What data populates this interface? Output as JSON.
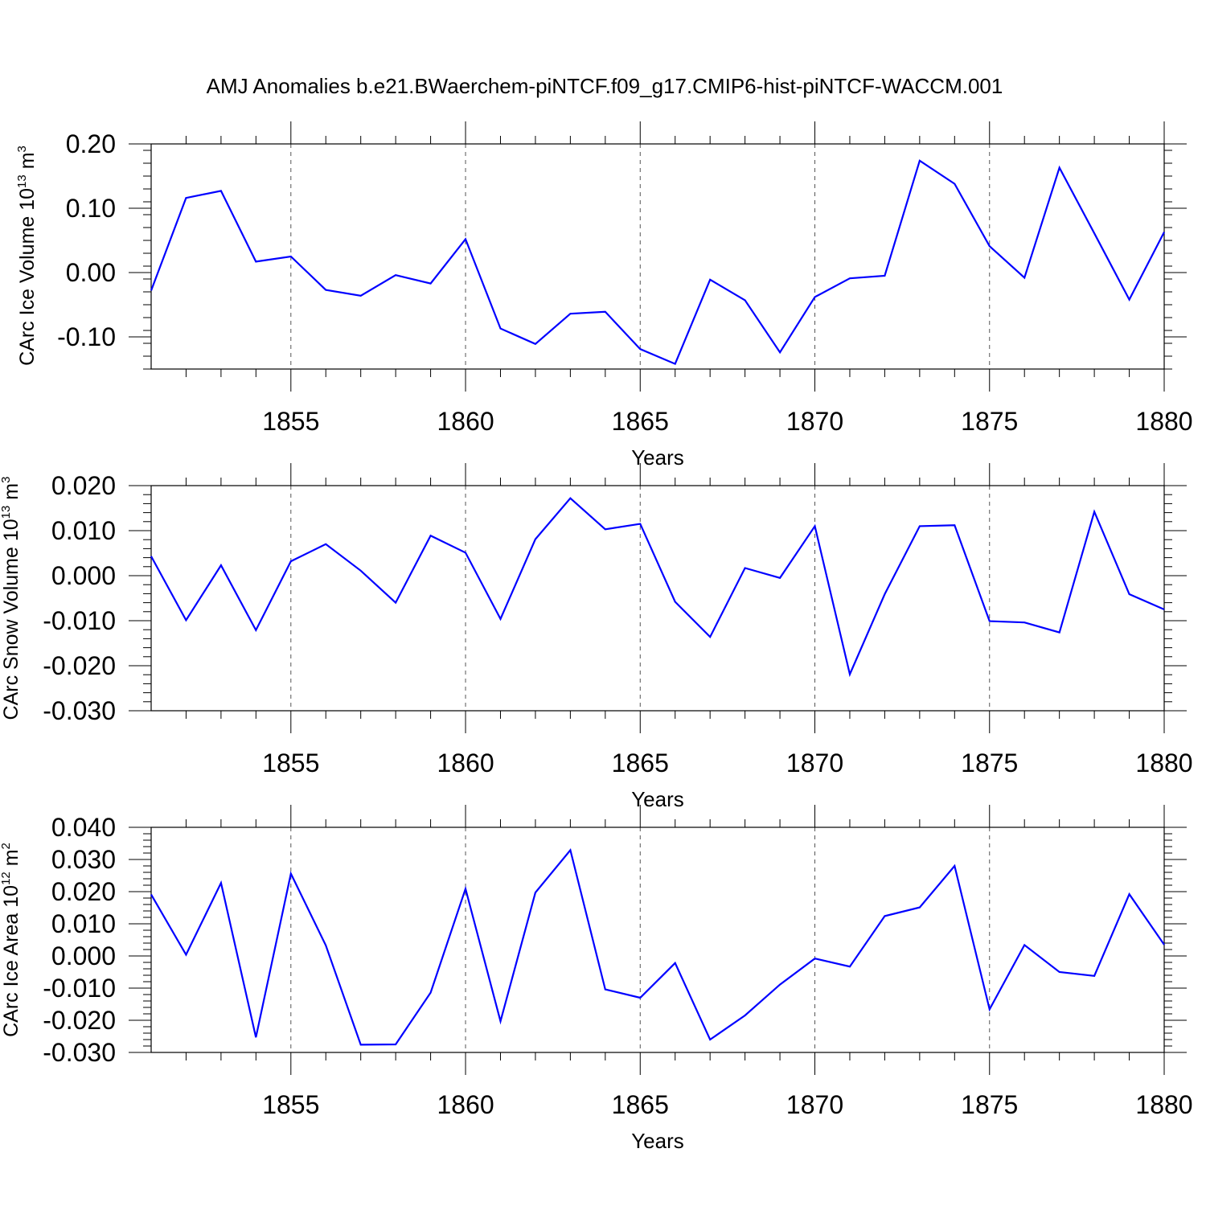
{
  "title": "AMJ Anomalies b.e21.BWaerchem-piNTCF.f09_g17.CMIP6-hist-piNTCF-WACCM.001",
  "chart_data": [
    {
      "type": "line",
      "name": "ice-volume",
      "ylabel": {
        "main": "CArc Ice Volume 10",
        "exp": "13",
        "unit": " m",
        "unit_exp": "3"
      },
      "xlabel": "Years",
      "xlim": [
        1851,
        1880
      ],
      "ylim": [
        -0.15,
        0.2
      ],
      "yticks": [
        -0.1,
        0.0,
        0.1,
        0.2
      ],
      "ytick_labels": [
        "-0.10",
        "0.00",
        "0.10",
        "0.20"
      ],
      "xticks": [
        1855,
        1860,
        1865,
        1870,
        1875,
        1880
      ],
      "xtick_labels": [
        "1855",
        "1860",
        "1865",
        "1870",
        "1875",
        "1880"
      ],
      "x": [
        1851,
        1852,
        1853,
        1854,
        1855,
        1856,
        1857,
        1858,
        1859,
        1860,
        1861,
        1862,
        1863,
        1864,
        1865,
        1866,
        1867,
        1868,
        1869,
        1870,
        1871,
        1872,
        1873,
        1874,
        1875,
        1876,
        1877,
        1878,
        1879,
        1880
      ],
      "values": [
        -0.028,
        0.116,
        0.127,
        0.017,
        0.025,
        -0.027,
        -0.036,
        -0.004,
        -0.017,
        0.052,
        -0.087,
        -0.111,
        -0.064,
        -0.061,
        -0.119,
        -0.142,
        -0.011,
        -0.043,
        -0.124,
        -0.038,
        -0.009,
        -0.005,
        0.174,
        0.138,
        0.041,
        -0.008,
        0.163,
        0.061,
        -0.042,
        0.063
      ]
    },
    {
      "type": "line",
      "name": "snow-volume",
      "ylabel": {
        "main": "CArc Snow Volume 10",
        "exp": "13",
        "unit": " m",
        "unit_exp": "3"
      },
      "xlabel": "Years",
      "xlim": [
        1851,
        1880
      ],
      "ylim": [
        -0.03,
        0.02
      ],
      "yticks": [
        -0.03,
        -0.02,
        -0.01,
        0.0,
        0.01,
        0.02
      ],
      "ytick_labels": [
        "-0.030",
        "-0.020",
        "-0.010",
        "0.000",
        "0.010",
        "0.020"
      ],
      "xticks": [
        1855,
        1860,
        1865,
        1870,
        1875,
        1880
      ],
      "xtick_labels": [
        "1855",
        "1860",
        "1865",
        "1870",
        "1875",
        "1880"
      ],
      "x": [
        1851,
        1852,
        1853,
        1854,
        1855,
        1856,
        1857,
        1858,
        1859,
        1860,
        1861,
        1862,
        1863,
        1864,
        1865,
        1866,
        1867,
        1868,
        1869,
        1870,
        1871,
        1872,
        1873,
        1874,
        1875,
        1876,
        1877,
        1878,
        1879,
        1880
      ],
      "values": [
        0.0043,
        -0.0099,
        0.0023,
        -0.0121,
        0.0032,
        0.007,
        0.0011,
        -0.006,
        0.0089,
        0.0051,
        -0.0096,
        0.0081,
        0.0172,
        0.0103,
        0.0115,
        -0.0058,
        -0.0136,
        0.0017,
        -0.0005,
        0.011,
        -0.0219,
        -0.0041,
        0.011,
        0.0112,
        -0.0101,
        -0.0104,
        -0.0126,
        0.0142,
        -0.0041,
        -0.0075
      ]
    },
    {
      "type": "line",
      "name": "ice-area",
      "ylabel": {
        "main": "CArc Ice Area 10",
        "exp": "12",
        "unit": " m",
        "unit_exp": "2"
      },
      "xlabel": "Years",
      "xlim": [
        1851,
        1880
      ],
      "ylim": [
        -0.03,
        0.04
      ],
      "yticks": [
        -0.03,
        -0.02,
        -0.01,
        0.0,
        0.01,
        0.02,
        0.03,
        0.04
      ],
      "ytick_labels": [
        "-0.030",
        "-0.020",
        "-0.010",
        "0.000",
        "0.010",
        "0.020",
        "0.030",
        "0.040"
      ],
      "xticks": [
        1855,
        1860,
        1865,
        1870,
        1875,
        1880
      ],
      "xtick_labels": [
        "1855",
        "1860",
        "1865",
        "1870",
        "1875",
        "1880"
      ],
      "x": [
        1851,
        1852,
        1853,
        1854,
        1855,
        1856,
        1857,
        1858,
        1859,
        1860,
        1861,
        1862,
        1863,
        1864,
        1865,
        1866,
        1867,
        1868,
        1869,
        1870,
        1871,
        1872,
        1873,
        1874,
        1875,
        1876,
        1877,
        1878,
        1879,
        1880
      ],
      "values": [
        0.0191,
        0.0004,
        0.0227,
        -0.0253,
        0.0256,
        0.0033,
        -0.0276,
        -0.0275,
        -0.0114,
        0.0209,
        -0.0203,
        0.0197,
        0.0329,
        -0.0104,
        -0.013,
        -0.0022,
        -0.026,
        -0.0185,
        -0.0089,
        -0.0008,
        -0.0033,
        0.0124,
        0.0151,
        0.028,
        -0.0166,
        0.0034,
        -0.005,
        -0.0062,
        0.0192,
        0.0035
      ]
    }
  ]
}
